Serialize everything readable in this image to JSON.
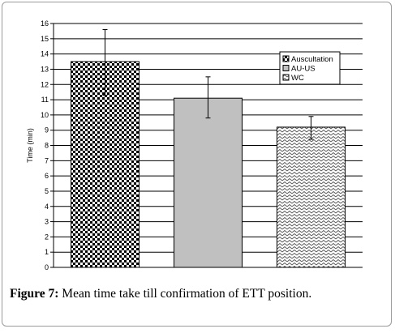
{
  "chart_data": {
    "type": "bar",
    "categories": [
      "Auscultation",
      "AU-US",
      "WC"
    ],
    "values": [
      13.5,
      11.1,
      9.2
    ],
    "error_high": [
      15.6,
      12.5,
      9.9
    ],
    "error_low": [
      11.3,
      9.8,
      8.4
    ],
    "ylabel": "Time (min)",
    "xlabel": "",
    "ylim": [
      0,
      16
    ],
    "yticks": [
      0,
      1,
      2,
      3,
      4,
      5,
      6,
      7,
      8,
      9,
      10,
      11,
      12,
      13,
      14,
      15,
      16
    ],
    "grid": "horizontal",
    "legend": {
      "placement": "top-right",
      "entries": [
        "Auscultation",
        "AU-US",
        "WC"
      ]
    },
    "fills": [
      "checkerboard",
      "#c0c0c0",
      "zigzag"
    ]
  },
  "caption": {
    "label": "Figure 7:",
    "text": " Mean time take till confirmation of ETT position."
  }
}
